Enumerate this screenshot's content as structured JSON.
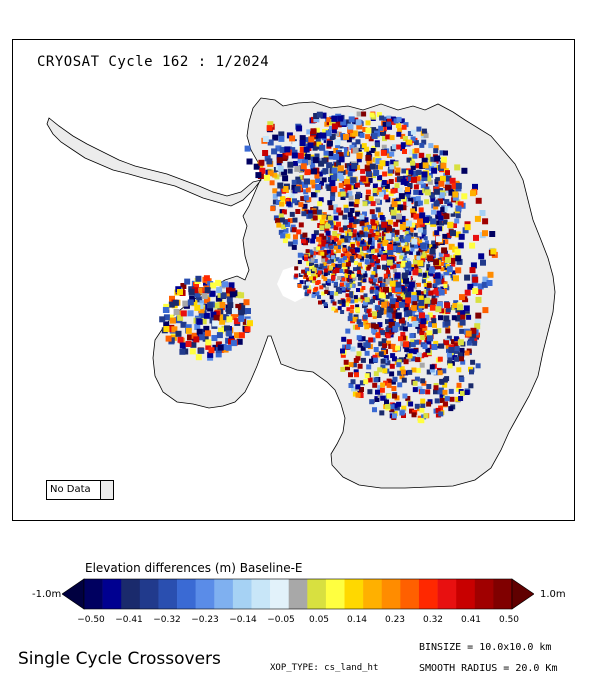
{
  "map": {
    "title": "CRYOSAT Cycle 162 : 1/2024",
    "no_data_label": "No Data",
    "no_data_color": "#ececec",
    "land_color": "#ececec"
  },
  "colorbar": {
    "title": "Elevation differences (m) Baseline-E",
    "min_label": "-1.0m",
    "max_label": "1.0m",
    "tick_labels": [
      "-0.50",
      "-0.41",
      "-0.32",
      "-0.23",
      "-0.14",
      "-0.05",
      "0.05",
      "0.14",
      "0.23",
      "0.32",
      "0.41",
      "0.50"
    ],
    "colors": [
      "#000060",
      "#000090",
      "#1a2a6c",
      "#213a8c",
      "#2a4fb0",
      "#3a6ad4",
      "#5a8ce8",
      "#7fb0f0",
      "#a6d2f4",
      "#c8e6f8",
      "#e2f2fa",
      "#a8a8a8",
      "#d8e040",
      "#ffff40",
      "#ffd800",
      "#ffb000",
      "#ff8c00",
      "#ff6000",
      "#ff2800",
      "#e81010",
      "#c80000",
      "#a00000",
      "#800000"
    ],
    "under_color": "#000040",
    "over_color": "#600000"
  },
  "footer": {
    "title": "Single Cycle Crossovers",
    "binsize": "BINSIZE = 10.0x10.0 km",
    "xop_type": "XOP_TYPE: cs_land_ht",
    "smooth_radius": "SMOOTH RADIUS =  20.0 Km"
  }
}
